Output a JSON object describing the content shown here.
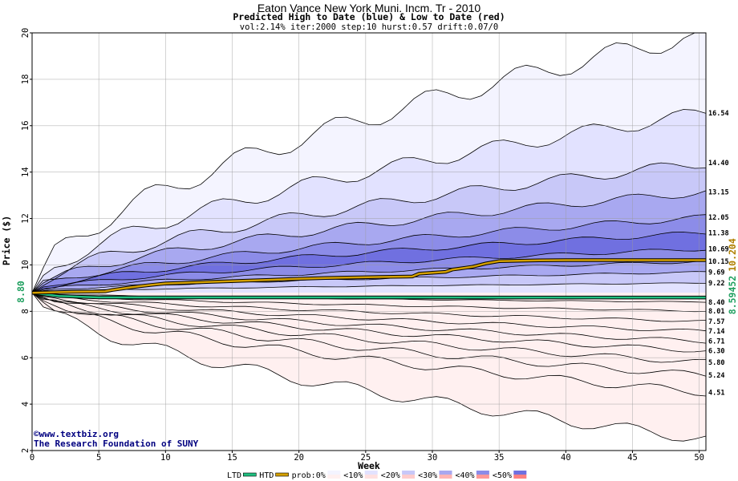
{
  "chart_data": {
    "type": "area",
    "title": "Eaton Vance New York Muni. Incm. Tr - 2010",
    "subtitle": "Predicted High to Date (blue) &  Low to Date (red)",
    "params": "vol:2.14% iter:2000 step:10 hurst:0.57 drift:0.07/0",
    "xlabel": "Week",
    "ylabel": "Price ($)",
    "xlim": [
      0,
      50.5
    ],
    "ylim": [
      2,
      20
    ],
    "x_ticks": [
      "0",
      "5",
      "10",
      "15",
      "20",
      "25",
      "30",
      "35",
      "40",
      "45",
      "50"
    ],
    "y_ticks": [
      "2",
      "4",
      "6",
      "8",
      "10",
      "12",
      "14",
      "16",
      "18",
      "20"
    ],
    "grid": true,
    "start_price": 8.8,
    "start_label": "8.80",
    "high_bands": [
      {
        "name": "0%",
        "end": 20.0,
        "color": "#f4f4ff"
      },
      {
        "name": "10%",
        "end": 16.54,
        "color": "#e2e2ff"
      },
      {
        "name": "20%",
        "end": 14.4,
        "color": "#c8c8f8"
      },
      {
        "name": "30%",
        "end": 13.15,
        "color": "#a8a8f0"
      },
      {
        "name": "40%",
        "end": 12.05,
        "color": "#8c8ce8"
      },
      {
        "name": "50%",
        "end": 11.38,
        "color": "#7070e0"
      },
      {
        "name": "60%",
        "end": 10.69,
        "color": "#8c8ce8"
      },
      {
        "name": "70%",
        "end": 10.15,
        "color": "#a8a8f0"
      },
      {
        "name": "80%",
        "end": 9.69,
        "color": "#c8c8f8"
      },
      {
        "name": "90%",
        "end": 9.22,
        "color": "#e2e2ff"
      }
    ],
    "low_bands": [
      {
        "name": "90%",
        "end": 8.4,
        "color": "#ffe0e0"
      },
      {
        "name": "80%",
        "end": 8.01,
        "color": "#ffcccc"
      },
      {
        "name": "70%",
        "end": 7.57,
        "color": "#ffb4b4"
      },
      {
        "name": "60%",
        "end": 7.14,
        "color": "#ff9898"
      },
      {
        "name": "50%",
        "end": 6.71,
        "color": "#ff8080"
      },
      {
        "name": "40%",
        "end": 6.3,
        "color": "#ff9898"
      },
      {
        "name": "30%",
        "end": 5.8,
        "color": "#ffb4b4"
      },
      {
        "name": "20%",
        "end": 5.24,
        "color": "#ffcccc"
      },
      {
        "name": "10%",
        "end": 4.51,
        "color": "#ffe0e0"
      },
      {
        "name": "0%",
        "end": 2.5,
        "color": "#fff0f0"
      }
    ],
    "end_labels": [
      "16.54",
      "14.40",
      "13.15",
      "12.05",
      "11.38",
      "10.69",
      "10.15",
      "9.69",
      "9.22",
      "8.40",
      "8.01",
      "7.57",
      "7.14",
      "6.71",
      "6.30",
      "5.80",
      "5.24",
      "4.51"
    ],
    "htd_series": {
      "name": "HTD",
      "color": "#d4a000",
      "x": [
        0,
        3,
        5.5,
        6,
        7,
        8,
        9,
        10,
        12,
        14,
        16,
        18,
        20,
        22,
        24,
        26,
        28.5,
        29,
        30,
        31,
        31.5,
        32,
        33,
        34,
        35,
        38,
        40,
        45,
        50.5
      ],
      "y": [
        8.8,
        8.84,
        8.86,
        8.92,
        9.0,
        9.08,
        9.14,
        9.2,
        9.24,
        9.28,
        9.32,
        9.36,
        9.4,
        9.44,
        9.46,
        9.48,
        9.5,
        9.62,
        9.66,
        9.7,
        9.8,
        9.84,
        9.92,
        10.06,
        10.16,
        10.2,
        10.204,
        10.204,
        10.204
      ],
      "end_label": "10.204"
    },
    "ltd_series": {
      "name": "LTD",
      "color": "#20c080",
      "x": [
        0,
        2,
        5,
        50.5
      ],
      "y": [
        8.8,
        8.66,
        8.6,
        8.59452
      ],
      "end_label": "8.59452"
    },
    "legend": {
      "items": [
        "LTD",
        "HTD",
        "prob:0%",
        "<10%",
        "<20%",
        "<30%",
        "<40%",
        "<50%"
      ],
      "placement": "bottom"
    },
    "credits": [
      "©www.textbiz.org",
      "The Research Foundation of SUNY"
    ]
  }
}
